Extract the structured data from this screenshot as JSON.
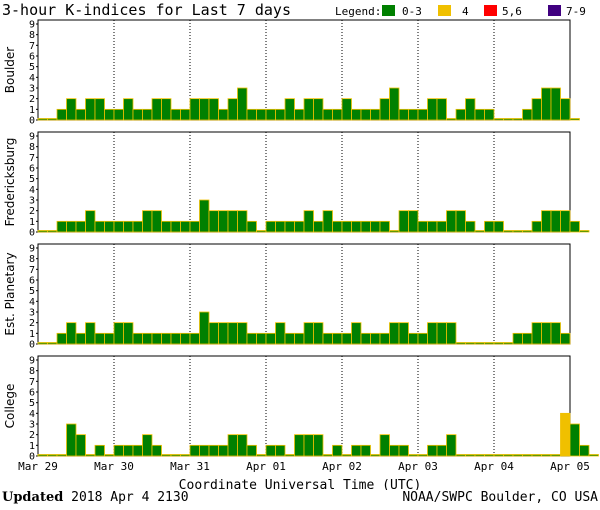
{
  "title": "3-hour K-indices for Last 7 days",
  "legend": {
    "label": "Legend:",
    "items": [
      {
        "label": "0-3",
        "color": "#008000"
      },
      {
        "label": "4",
        "color": "#f0c000"
      },
      {
        "label": "5,6",
        "color": "#ff0000"
      },
      {
        "label": "7-9",
        "color": "#400080"
      }
    ]
  },
  "footer": {
    "updated_label": "Updated",
    "updated_value": "2018 Apr  4 2130",
    "source": "NOAA/SWPC Boulder, CO USA"
  },
  "chart_data": {
    "type": "bar",
    "xlabel": "Coordinate Universal Time (UTC)",
    "ylim": [
      0,
      9
    ],
    "y_ticks": [
      0,
      1,
      2,
      3,
      4,
      5,
      6,
      7,
      8,
      9
    ],
    "x_ticks": [
      "Mar 29",
      "Mar 30",
      "Mar 31",
      "Apr 01",
      "Apr 02",
      "Apr 03",
      "Apr 04",
      "Apr 05"
    ],
    "color_scale": [
      {
        "range": "0-3",
        "color": "#008000"
      },
      {
        "range": "4",
        "color": "#f0c000"
      },
      {
        "range": "5,6",
        "color": "#ff0000"
      },
      {
        "range": "7-9",
        "color": "#400080"
      }
    ],
    "series": [
      {
        "name": "Boulder",
        "values": [
          0,
          0,
          1,
          2,
          1,
          2,
          2,
          1,
          1,
          2,
          1,
          1,
          2,
          2,
          1,
          1,
          2,
          2,
          2,
          1,
          2,
          3,
          1,
          1,
          1,
          1,
          2,
          1,
          2,
          2,
          1,
          1,
          2,
          1,
          1,
          1,
          2,
          3,
          1,
          1,
          1,
          2,
          2,
          0,
          1,
          2,
          1,
          1,
          0,
          0,
          0,
          1,
          2,
          3,
          3,
          2,
          0
        ]
      },
      {
        "name": "Fredericksburg",
        "values": [
          0,
          0,
          1,
          1,
          1,
          2,
          1,
          1,
          1,
          1,
          1,
          2,
          2,
          1,
          1,
          1,
          1,
          3,
          2,
          2,
          2,
          2,
          1,
          0,
          1,
          1,
          1,
          1,
          2,
          1,
          2,
          1,
          1,
          1,
          1,
          1,
          1,
          0,
          2,
          2,
          1,
          1,
          1,
          2,
          2,
          1,
          0,
          1,
          1,
          0,
          0,
          0,
          1,
          2,
          2,
          2,
          1,
          0
        ]
      },
      {
        "name": "Est. Planetary",
        "values": [
          0,
          0,
          1,
          2,
          1,
          2,
          1,
          1,
          2,
          2,
          1,
          1,
          1,
          1,
          1,
          1,
          1,
          3,
          2,
          2,
          2,
          2,
          1,
          1,
          1,
          2,
          1,
          1,
          2,
          2,
          1,
          1,
          1,
          2,
          1,
          1,
          1,
          2,
          2,
          1,
          1,
          2,
          2,
          2,
          0,
          0,
          0,
          0,
          0,
          0,
          1,
          1,
          2,
          2,
          2,
          1
        ]
      },
      {
        "name": "College",
        "values": [
          0,
          0,
          0,
          3,
          2,
          0,
          1,
          0,
          1,
          1,
          1,
          2,
          1,
          0,
          0,
          0,
          1,
          1,
          1,
          1,
          2,
          2,
          1,
          0,
          1,
          1,
          0,
          2,
          2,
          2,
          0,
          1,
          0,
          1,
          1,
          0,
          2,
          1,
          1,
          0,
          0,
          1,
          1,
          2,
          0,
          0,
          0,
          0,
          0,
          0,
          0,
          0,
          0,
          0,
          0,
          4,
          3,
          1,
          0
        ]
      }
    ]
  }
}
